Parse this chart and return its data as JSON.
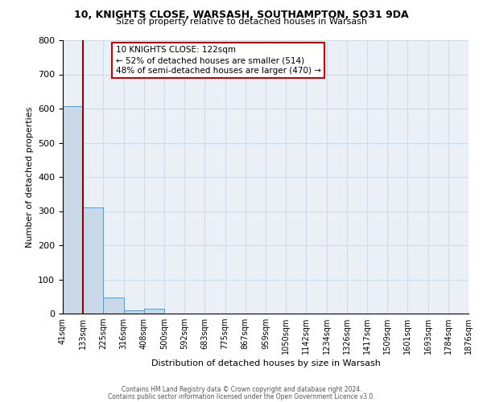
{
  "title1": "10, KNIGHTS CLOSE, WARSASH, SOUTHAMPTON, SO31 9DA",
  "title2": "Size of property relative to detached houses in Warsash",
  "xlabel": "Distribution of detached houses by size in Warsash",
  "ylabel": "Number of detached properties",
  "bar_values": [
    606,
    311,
    47,
    10,
    13,
    0,
    0,
    0,
    0,
    0,
    0,
    0,
    0,
    0,
    0,
    0,
    0,
    0,
    0,
    0
  ],
  "bar_labels": [
    "41sqm",
    "133sqm",
    "225sqm",
    "316sqm",
    "408sqm",
    "500sqm",
    "592sqm",
    "683sqm",
    "775sqm",
    "867sqm",
    "959sqm",
    "1050sqm",
    "1142sqm",
    "1234sqm",
    "1326sqm",
    "1417sqm",
    "1509sqm",
    "1601sqm",
    "1693sqm",
    "1784sqm",
    "1876sqm"
  ],
  "bar_color": "#c9d9e8",
  "bar_edge_color": "#5a9ac5",
  "property_line_color": "#8b0000",
  "annotation_text": "10 KNIGHTS CLOSE: 122sqm\n← 52% of detached houses are smaller (514)\n48% of semi-detached houses are larger (470) →",
  "annotation_fontsize": 7.5,
  "ylim": [
    0,
    800
  ],
  "yticks": [
    0,
    100,
    200,
    300,
    400,
    500,
    600,
    700,
    800
  ],
  "footer1": "Contains HM Land Registry data © Crown copyright and database right 2024.",
  "footer2": "Contains public sector information licensed under the Open Government Licence v3.0.",
  "background_color": "#eaf0f6",
  "grid_color": "#d0dce8",
  "fig_bg": "#ffffff"
}
